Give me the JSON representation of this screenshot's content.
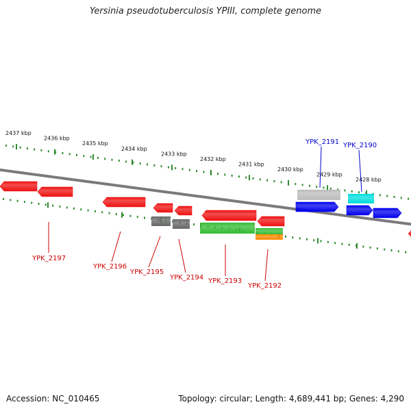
{
  "title": "Yersinia pseudotuberculosis YPIII, complete genome",
  "accession": "Accession: NC_010465",
  "summary": "Topology: circular; Length: 4,689,441 bp; Genes: 4,290",
  "colors": {
    "backbone": "#7a7a7a",
    "tick": "#2e8b2e",
    "red_gene": "#ee1111",
    "gray_gene": "#666666",
    "green_gene": "#33bb33",
    "orange_gene": "#ff8800",
    "blue_gene": "#0000ee",
    "light_gray_gene": "#bbbbbb",
    "cyan_gene": "#00dddd",
    "label_red": "#cc0000",
    "label_blue": "#0000cc"
  },
  "ticks": [
    {
      "label": "2437 kbp"
    },
    {
      "label": "2436 kbp"
    },
    {
      "label": "2435 kbp"
    },
    {
      "label": "2434 kbp"
    },
    {
      "label": "2433 kbp"
    },
    {
      "label": "2432 kbp"
    },
    {
      "label": "2431 kbp"
    },
    {
      "label": "2430 kbp"
    },
    {
      "label": "2429 kbp"
    },
    {
      "label": "2428 kbp"
    }
  ],
  "gene_labels": [
    {
      "text": "YPK_2197",
      "color": "label_red"
    },
    {
      "text": "YPK_2196",
      "color": "label_red"
    },
    {
      "text": "YPK_2195",
      "color": "label_red"
    },
    {
      "text": "YPK_2194",
      "color": "label_red"
    },
    {
      "text": "YPK_2193",
      "color": "label_red"
    },
    {
      "text": "YPK_2192",
      "color": "label_red"
    },
    {
      "text": "YPK_2191",
      "color": "label_blue"
    },
    {
      "text": "YPK_2190",
      "color": "label_blue"
    }
  ]
}
